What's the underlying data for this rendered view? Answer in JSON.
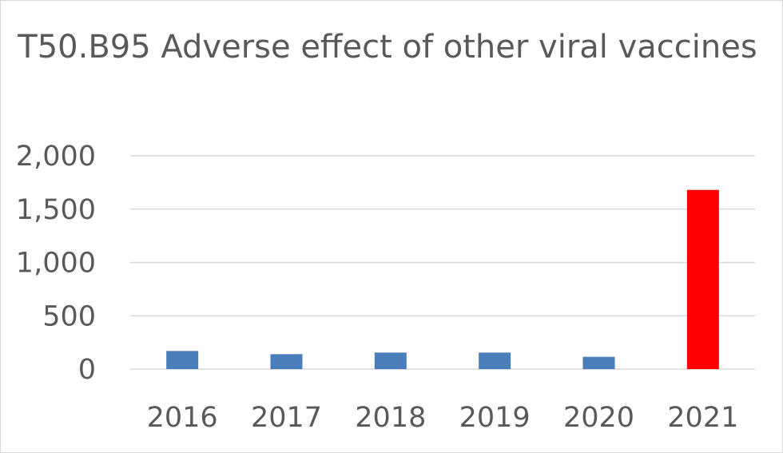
{
  "chart_data": {
    "type": "bar",
    "title": "T50.B95 Adverse effect of other viral vaccines",
    "categories": [
      "2016",
      "2017",
      "2018",
      "2019",
      "2020",
      "2021"
    ],
    "values": [
      170,
      140,
      155,
      155,
      115,
      1680
    ],
    "bar_colors": [
      "#4a7ebb",
      "#4a7ebb",
      "#4a7ebb",
      "#4a7ebb",
      "#4a7ebb",
      "#ff0000"
    ],
    "ylim": [
      0,
      2000
    ],
    "yticks": [
      "0",
      "500",
      "1,000",
      "1,500",
      "2,000"
    ],
    "ytick_values": [
      0,
      500,
      1000,
      1500,
      2000
    ],
    "grid": true,
    "legend": "none"
  }
}
